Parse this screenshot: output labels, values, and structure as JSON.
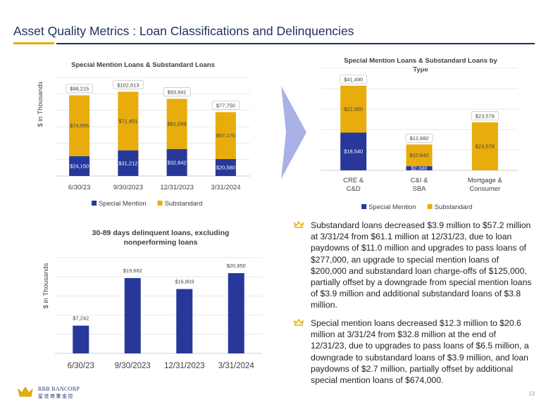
{
  "page": {
    "title": "Asset Quality Metrics : Loan Classifications and Delinquencies",
    "page_number": "13",
    "logo_line1": "RBB BANCORP",
    "logo_line2": "星佳商業金控"
  },
  "colors": {
    "navy": "#27389a",
    "gold": "#e8ad0c",
    "title": "#1e2f5e",
    "grid": "#d9d9d9",
    "arrow": "#a9b1e6"
  },
  "chart_data": [
    {
      "type": "bar",
      "stacked": true,
      "title": "Special Mention Loans & Substandard Loans",
      "ylabel": "$ in Thousands",
      "xlabel": "",
      "categories": [
        "6/30/23",
        "9/30/2023",
        "12/31/2023",
        "3/31/2024"
      ],
      "series": [
        {
          "name": "Special Mention",
          "color": "#27389a",
          "values": [
            24150,
            31212,
            32842,
            20580
          ],
          "labels": [
            "$24,150",
            "$31,212",
            "$32,842",
            "$20,580"
          ]
        },
        {
          "name": "Substandard",
          "color": "#e8ad0c",
          "values": [
            74065,
            71401,
            61099,
            57170
          ],
          "labels": [
            "$74,065",
            "$71,401",
            "$61,099",
            "$57,170"
          ]
        }
      ],
      "totals": [
        "$98,215",
        "$102,613",
        "$93,941",
        "$77,750"
      ],
      "ylim": [
        0,
        120000
      ],
      "grid": true,
      "legend": "bottom"
    },
    {
      "type": "bar",
      "stacked": true,
      "title": "Special Mention Loans & Substandard Loans by Type",
      "categories": [
        "CRE & C&D",
        "C&I & SBA",
        "Mortgage & Consumer"
      ],
      "series": [
        {
          "name": "Special Mention",
          "color": "#27389a",
          "values": [
            18540,
            2040,
            0
          ],
          "labels": [
            "$18,540",
            "$2,040",
            ""
          ]
        },
        {
          "name": "Substandard",
          "color": "#e8ad0c",
          "values": [
            22950,
            10642,
            23578
          ],
          "labels": [
            "$22,950",
            "$10,642",
            "$23,578"
          ]
        }
      ],
      "totals": [
        "$41,490",
        "$12,682",
        "$23,578"
      ],
      "ylim": [
        0,
        50000
      ],
      "grid": true,
      "legend": "bottom"
    },
    {
      "type": "bar",
      "title": "30-89 days delinquent loans, excluding nonperforming loans",
      "ylabel": "$ in Thousands",
      "xlabel": "",
      "categories": [
        "6/30/23",
        "9/30/2023",
        "12/31/2023",
        "3/31/2024"
      ],
      "values": [
        7242,
        19662,
        16803,
        20950
      ],
      "labels": [
        "$7,242",
        "$19,662",
        "$16,803",
        "$20,950"
      ],
      "color": "#27389a",
      "ylim": [
        0,
        25000
      ],
      "grid": true
    }
  ],
  "bullets": [
    "Substandard loans decreased $3.9 million to $57.2 million at 3/31/24 from $61.1 million at 12/31/23, due to loan paydowns of $11.0 million and upgrades to pass loans of $277,000, an upgrade to special mention loans of $200,000 and substandard loan charge-offs of $125,000, partially offset by a downgrade from special mention loans of $3.9 million and additional substandard loans of $3.8 million.",
    "Special mention loans decreased $12.3 million  to $20.6 million at 3/31/24 from $32.8 million at the end of 12/31/23, due to upgrades to pass loans of $6.5 million, a downgrade to substandard loans of $3.9 million, and loan paydowns of $2.7 million, partially offset by additional special mention loans of $674,000."
  ]
}
